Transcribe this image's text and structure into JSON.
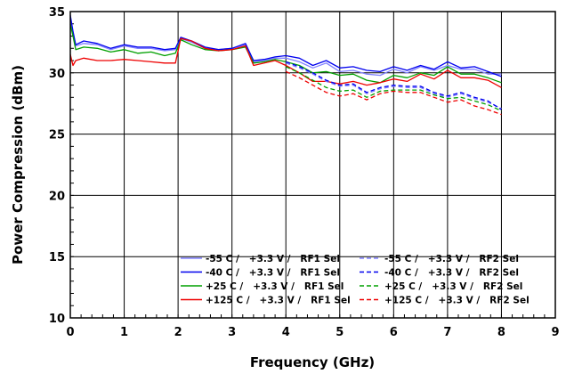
{
  "chart_data": {
    "type": "line",
    "title": "",
    "xlabel": "Frequency (GHz)",
    "ylabel": "Power Compression (dBm)",
    "xlim": [
      0,
      9
    ],
    "ylim": [
      10,
      35
    ],
    "xticks": [
      "0",
      "1",
      "2",
      "3",
      "4",
      "5",
      "6",
      "7",
      "8",
      "9"
    ],
    "yticks": [
      "10",
      "15",
      "20",
      "25",
      "30",
      "35"
    ],
    "grid": true,
    "legend_position": "bottom-right",
    "series": [
      {
        "name": "-55 C /   +3.3 V /   RF1 Sel",
        "color": "#8080ff",
        "style": "solid",
        "x": [
          0,
          0.05,
          0.1,
          0.25,
          0.5,
          0.75,
          1.0,
          1.25,
          1.5,
          1.75,
          1.95,
          2.05,
          2.25,
          2.5,
          2.75,
          3.0,
          3.25,
          3.4,
          3.6,
          3.8,
          4.0,
          4.25,
          4.5,
          4.75,
          5.0,
          5.25,
          5.5,
          5.75,
          6.0,
          6.25,
          6.5,
          6.75,
          7.0,
          7.25,
          7.5,
          7.75,
          8.0
        ],
        "y": [
          34.5,
          33.3,
          32.2,
          32.4,
          32.3,
          31.9,
          32.2,
          32.0,
          32.0,
          31.8,
          31.9,
          32.8,
          32.5,
          32.0,
          31.9,
          32.0,
          32.3,
          30.9,
          31.0,
          31.2,
          31.2,
          30.9,
          30.4,
          30.8,
          30.1,
          30.2,
          29.9,
          29.8,
          30.3,
          30.0,
          30.5,
          30.2,
          30.6,
          30.3,
          30.3,
          29.9,
          29.9
        ]
      },
      {
        "name": "-40 C /   +3.3 V /   RF1 Sel",
        "color": "#0000ee",
        "style": "solid",
        "x": [
          0,
          0.05,
          0.1,
          0.25,
          0.5,
          0.75,
          1.0,
          1.25,
          1.5,
          1.75,
          1.95,
          2.05,
          2.25,
          2.5,
          2.75,
          3.0,
          3.25,
          3.4,
          3.6,
          3.8,
          4.0,
          4.25,
          4.5,
          4.75,
          5.0,
          5.25,
          5.5,
          5.75,
          6.0,
          6.25,
          6.5,
          6.75,
          7.0,
          7.25,
          7.5,
          7.75,
          8.0
        ],
        "y": [
          34.7,
          33.4,
          32.3,
          32.6,
          32.4,
          32.0,
          32.3,
          32.1,
          32.1,
          31.9,
          32.0,
          32.9,
          32.6,
          32.1,
          31.9,
          32.0,
          32.4,
          31.0,
          31.1,
          31.3,
          31.4,
          31.2,
          30.6,
          31.0,
          30.4,
          30.5,
          30.2,
          30.1,
          30.5,
          30.2,
          30.6,
          30.3,
          30.9,
          30.4,
          30.5,
          30.1,
          29.7
        ]
      },
      {
        "name": "+25 C /   +3.3 V /   RF1 Sel",
        "color": "#00a000",
        "style": "solid",
        "x": [
          0,
          0.05,
          0.1,
          0.25,
          0.5,
          0.75,
          1.0,
          1.25,
          1.5,
          1.75,
          1.95,
          2.05,
          2.25,
          2.5,
          2.75,
          3.0,
          3.25,
          3.4,
          3.6,
          3.8,
          4.0,
          4.25,
          4.5,
          4.75,
          5.0,
          5.25,
          5.5,
          5.75,
          6.0,
          6.25,
          6.5,
          6.75,
          7.0,
          7.25,
          7.5,
          7.75,
          8.0
        ],
        "y": [
          34.0,
          33.0,
          31.9,
          32.1,
          32.0,
          31.7,
          31.9,
          31.6,
          31.7,
          31.4,
          31.6,
          32.7,
          32.3,
          31.9,
          31.8,
          31.9,
          32.1,
          30.8,
          30.9,
          31.1,
          30.9,
          30.6,
          30.0,
          30.1,
          29.8,
          29.9,
          29.4,
          29.2,
          29.8,
          29.6,
          30.0,
          29.8,
          30.5,
          29.9,
          29.9,
          29.6,
          29.2
        ]
      },
      {
        "name": "+125 C /   +3.3 V /   RF1 Sel",
        "color": "#ee0000",
        "style": "solid",
        "x": [
          0,
          0.05,
          0.1,
          0.25,
          0.5,
          0.75,
          1.0,
          1.25,
          1.5,
          1.75,
          1.95,
          2.05,
          2.25,
          2.5,
          2.75,
          3.0,
          3.25,
          3.4,
          3.6,
          3.8,
          4.0,
          4.25,
          4.5,
          4.75,
          5.0,
          5.25,
          5.5,
          5.75,
          6.0,
          6.25,
          6.5,
          6.75,
          7.0,
          7.25,
          7.5,
          7.75,
          8.0
        ],
        "y": [
          31.5,
          30.6,
          31.0,
          31.2,
          31.0,
          31.0,
          31.1,
          31.0,
          30.9,
          30.8,
          30.8,
          32.8,
          32.6,
          32.0,
          31.8,
          31.9,
          32.2,
          30.6,
          30.8,
          31.0,
          30.6,
          30.0,
          29.3,
          29.3,
          29.1,
          29.3,
          29.0,
          29.2,
          29.5,
          29.3,
          29.9,
          29.5,
          30.2,
          29.6,
          29.6,
          29.4,
          28.8
        ]
      },
      {
        "name": "-55 C /   +3.3 V /   RF2 Sel",
        "color": "#8080ff",
        "style": "dashed",
        "x": [
          4.0,
          4.25,
          4.5,
          4.75,
          5.0,
          5.25,
          5.5,
          5.75,
          6.0,
          6.25,
          6.5,
          6.75,
          7.0,
          7.25,
          7.5,
          7.75,
          8.0
        ],
        "y": [
          30.8,
          30.4,
          29.9,
          29.3,
          28.9,
          29.0,
          28.3,
          28.7,
          28.9,
          28.8,
          28.8,
          28.3,
          28.0,
          28.3,
          27.9,
          27.6,
          27.1
        ]
      },
      {
        "name": "-40 C /   +3.3 V /   RF2 Sel",
        "color": "#0000ee",
        "style": "dashed",
        "x": [
          4.0,
          4.25,
          4.5,
          4.75,
          5.0,
          5.25,
          5.5,
          5.75,
          6.0,
          6.25,
          6.5,
          6.75,
          7.0,
          7.25,
          7.5,
          7.75,
          8.0
        ],
        "y": [
          30.9,
          30.5,
          30.0,
          29.4,
          29.0,
          29.1,
          28.4,
          28.8,
          29.0,
          28.9,
          28.9,
          28.4,
          28.1,
          28.4,
          28.0,
          27.7,
          27.0
        ]
      },
      {
        "name": "+25 C /   +3.3 V /   RF2 Sel",
        "color": "#00a000",
        "style": "dashed",
        "x": [
          4.0,
          4.25,
          4.5,
          4.75,
          5.0,
          5.25,
          5.5,
          5.75,
          6.0,
          6.25,
          6.5,
          6.75,
          7.0,
          7.25,
          7.5,
          7.75,
          8.0
        ],
        "y": [
          30.5,
          30.0,
          29.4,
          28.8,
          28.5,
          28.6,
          28.0,
          28.5,
          28.6,
          28.6,
          28.6,
          28.2,
          27.9,
          28.0,
          27.7,
          27.4,
          26.9
        ]
      },
      {
        "name": "+125 C /   +3.3 V /   RF2 Sel",
        "color": "#ee0000",
        "style": "dashed",
        "x": [
          4.0,
          4.25,
          4.5,
          4.75,
          5.0,
          5.25,
          5.5,
          5.75,
          6.0,
          6.25,
          6.5,
          6.75,
          7.0,
          7.25,
          7.5,
          7.75,
          8.0
        ],
        "y": [
          30.1,
          29.6,
          29.0,
          28.4,
          28.1,
          28.3,
          27.8,
          28.3,
          28.5,
          28.4,
          28.4,
          28.0,
          27.6,
          27.8,
          27.3,
          27.0,
          26.6
        ]
      }
    ]
  }
}
